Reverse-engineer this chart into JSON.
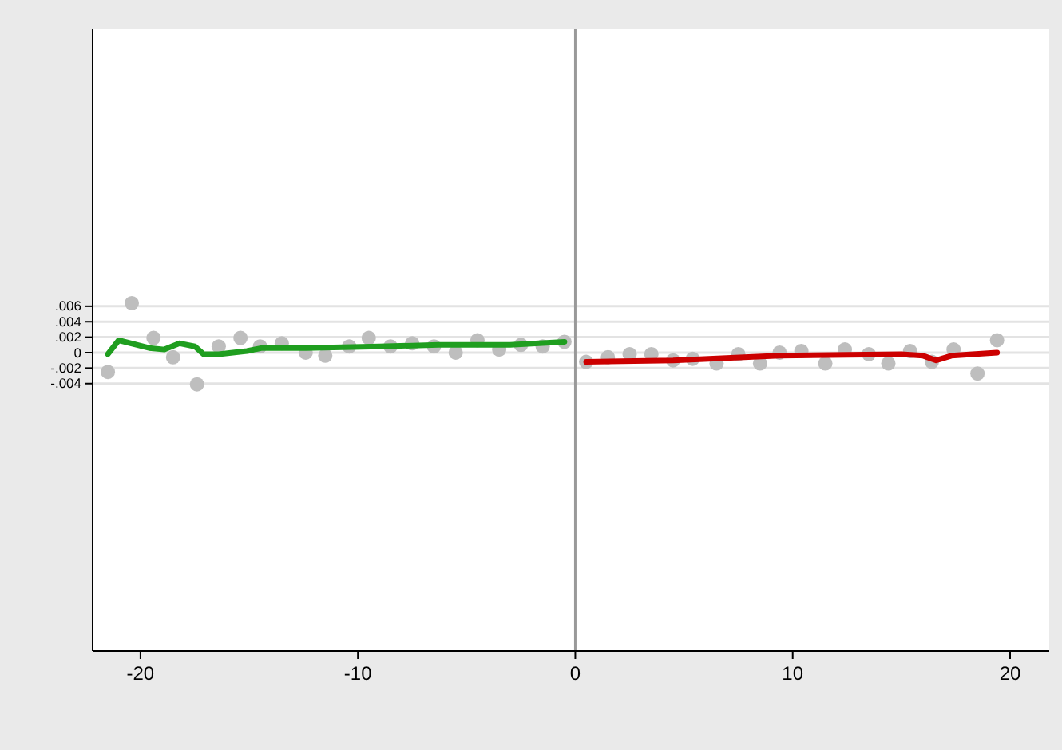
{
  "chart_data": {
    "type": "scatter",
    "xlim": [
      -22.2,
      21.8
    ],
    "ylim": [
      -0.0386,
      0.0419
    ],
    "xticks": [
      -20,
      -10,
      0,
      10,
      20
    ],
    "yticks": [
      {
        "value": -0.004,
        "label": "-.004"
      },
      {
        "value": -0.002,
        "label": "-.002"
      },
      {
        "value": 0,
        "label": "0"
      },
      {
        "value": 0.002,
        "label": ".002"
      },
      {
        "value": 0.004,
        "label": ".004"
      },
      {
        "value": 0.006,
        "label": ".006"
      }
    ],
    "grid": "y",
    "marker": "circle",
    "ref_lines": [
      {
        "axis": "x",
        "value": 0,
        "color": "#999999"
      }
    ],
    "series": [
      {
        "color": "#bebebe",
        "x": [
          -21.5,
          -20.4,
          -19.4,
          -18.5,
          -17.4,
          -16.4,
          -15.4,
          -14.5,
          -13.5,
          -12.4,
          -11.5,
          -10.4,
          -9.5,
          -8.5,
          -7.5,
          -6.5,
          -5.5,
          -4.5,
          -3.5,
          -2.5,
          -1.5,
          -0.5,
          0.5,
          1.5,
          2.5,
          3.5,
          4.5,
          5.4,
          6.5,
          7.5,
          8.5,
          9.4,
          10.4,
          11.5,
          12.4,
          13.5,
          14.4,
          15.4,
          16.4,
          17.4,
          18.5,
          19.4
        ],
        "values": [
          -0.0025,
          0.0064,
          0.0019,
          -0.0006,
          -0.0041,
          0.0008,
          0.0019,
          0.0008,
          0.0012,
          0,
          -0.0004,
          0.0008,
          0.0019,
          0.0008,
          0.0012,
          0.0008,
          0,
          0.0016,
          0.0004,
          0.001,
          0.0008,
          0.0014,
          -0.0012,
          -0.0006,
          -0.0002,
          -0.0002,
          -0.001,
          -0.0008,
          -0.0014,
          -0.0002,
          -0.0014,
          0,
          0.0002,
          -0.0014,
          0.0004,
          -0.0002,
          -0.0014,
          0.0002,
          -0.0012,
          0.0004,
          -0.0027,
          0.0016
        ]
      },
      {
        "type": "line",
        "color": "#1f9e1f",
        "marker": "none",
        "x": [
          -21.5,
          -21,
          -19.6,
          -18.9,
          -18.2,
          -17.5,
          -17.1,
          -16.4,
          -15.1,
          -14.4,
          -12.4,
          -9,
          -6.3,
          -3,
          -0.5
        ],
        "values": [
          -0.0002,
          0.0016,
          0.0006,
          0.0004,
          0.0012,
          0.0008,
          -0.0002,
          -0.0002,
          0.0002,
          0.0006,
          0.0006,
          0.0008,
          0.001,
          0.001,
          0.0014
        ]
      },
      {
        "type": "line",
        "color": "#cc0000",
        "marker": "none",
        "x": [
          0.5,
          4.5,
          9.4,
          15,
          16,
          16.6,
          17.3,
          19.4
        ],
        "values": [
          -0.0012,
          -0.001,
          -0.0004,
          -0.0002,
          -0.0004,
          -0.001,
          -0.0004,
          0
        ]
      }
    ]
  }
}
